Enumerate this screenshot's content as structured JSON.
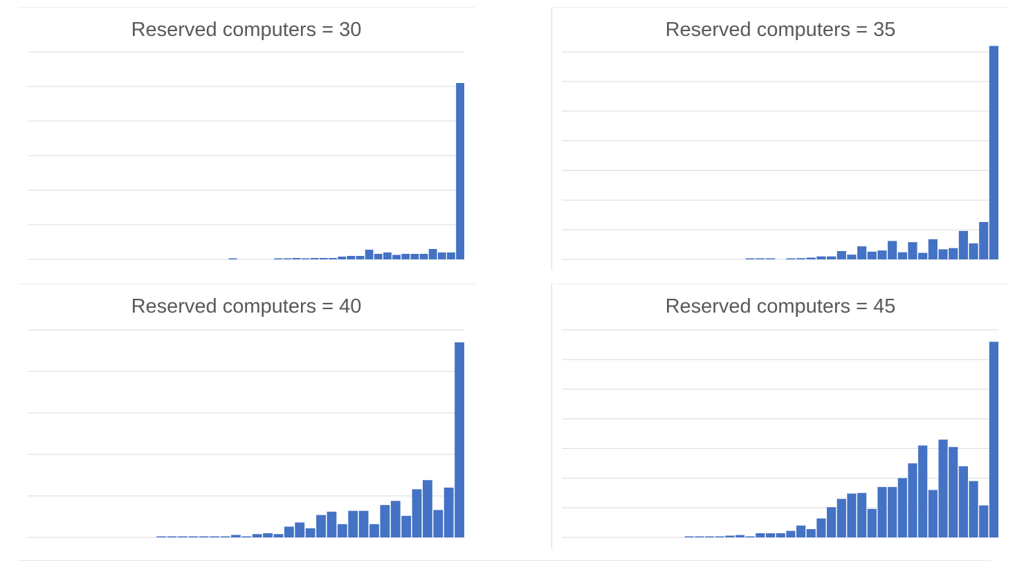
{
  "colors": {
    "bar": "#4472c4",
    "grid": "#d9d9d9",
    "title": "#595959"
  },
  "chart_data": [
    {
      "type": "bar",
      "title": "Reserved computers = 30",
      "xlabel": "",
      "ylabel": "",
      "grid": true,
      "ylim": [
        0,
        6
      ],
      "values": [
        0,
        0,
        0,
        0,
        0,
        0,
        0,
        0,
        0,
        0,
        0,
        0,
        0,
        0,
        0,
        0,
        0,
        0,
        0,
        0,
        0,
        0,
        0.02,
        0,
        0,
        0,
        0,
        0.02,
        0.02,
        0.04,
        0.02,
        0.04,
        0.04,
        0.04,
        0.08,
        0.1,
        0.1,
        0.28,
        0.16,
        0.2,
        0.13,
        0.16,
        0.16,
        0.16,
        0.3,
        0.2,
        0.2,
        5.1
      ]
    },
    {
      "type": "bar",
      "title": "Reserved computers = 35",
      "xlabel": "",
      "ylabel": "",
      "grid": true,
      "ylim": [
        0,
        7
      ],
      "values": [
        0,
        0,
        0,
        0,
        0,
        0,
        0,
        0,
        0,
        0,
        0,
        0,
        0,
        0,
        0,
        0,
        0,
        0,
        0.02,
        0.02,
        0.02,
        0,
        0.02,
        0.04,
        0.06,
        0.1,
        0.1,
        0.28,
        0.16,
        0.44,
        0.26,
        0.3,
        0.62,
        0.24,
        0.58,
        0.22,
        0.68,
        0.34,
        0.38,
        0.96,
        0.54,
        1.26,
        7.2
      ]
    },
    {
      "type": "bar",
      "title": "Reserved computers = 40",
      "xlabel": "",
      "ylabel": "",
      "grid": true,
      "ylim": [
        0,
        5
      ],
      "values": [
        0,
        0,
        0,
        0,
        0,
        0,
        0,
        0,
        0,
        0,
        0,
        0,
        0.02,
        0.02,
        0.02,
        0.02,
        0.02,
        0.02,
        0.02,
        0.06,
        0.02,
        0.08,
        0.1,
        0.08,
        0.26,
        0.36,
        0.22,
        0.54,
        0.62,
        0.32,
        0.64,
        0.64,
        0.32,
        0.78,
        0.88,
        0.52,
        1.16,
        1.38,
        0.66,
        1.2,
        4.7
      ]
    },
    {
      "type": "bar",
      "title": "Reserved computers = 45",
      "xlabel": "",
      "ylabel": "",
      "grid": true,
      "ylim": [
        0,
        7
      ],
      "values": [
        0,
        0,
        0,
        0,
        0,
        0,
        0,
        0,
        0,
        0,
        0,
        0,
        0.02,
        0.02,
        0.02,
        0.02,
        0.06,
        0.08,
        0.02,
        0.14,
        0.14,
        0.14,
        0.22,
        0.4,
        0.28,
        0.64,
        1.02,
        1.3,
        1.48,
        1.5,
        0.96,
        1.7,
        1.7,
        2.0,
        2.5,
        3.1,
        1.6,
        3.3,
        3.05,
        2.4,
        1.9,
        1.08,
        6.6
      ]
    }
  ]
}
